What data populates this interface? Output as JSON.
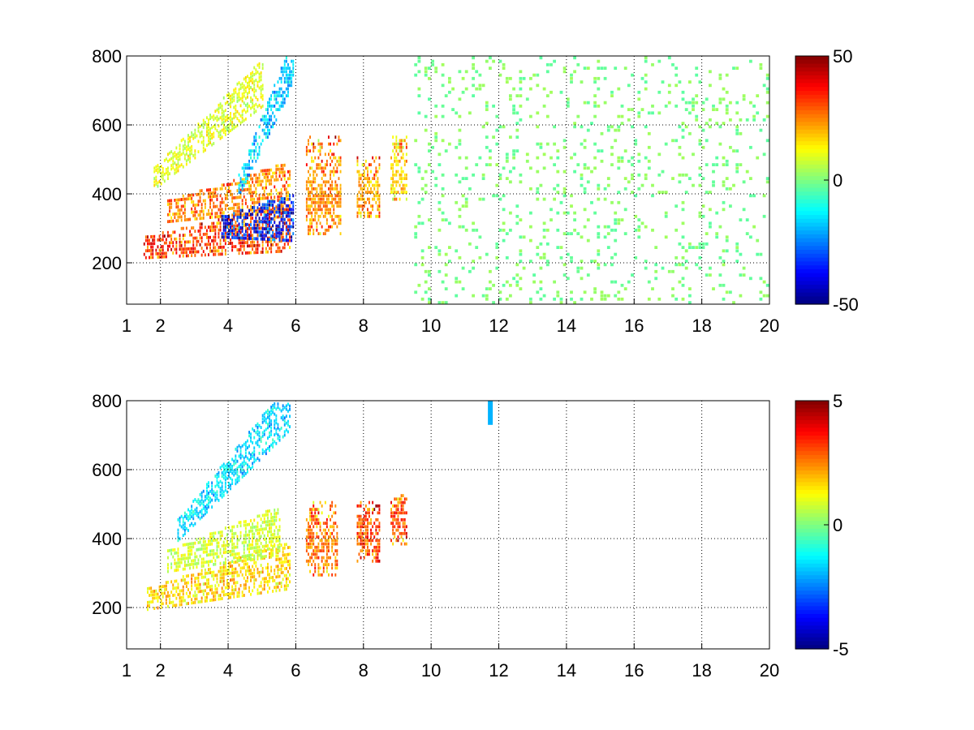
{
  "chart_data": [
    {
      "type": "heatmap",
      "title": "",
      "xlabel": "",
      "ylabel": "",
      "xlim": [
        1,
        20
      ],
      "ylim": [
        80,
        800
      ],
      "grid": true,
      "x_ticks": [
        1,
        2,
        4,
        6,
        8,
        10,
        12,
        14,
        16,
        18,
        20
      ],
      "y_ticks": [
        200,
        400,
        600,
        800
      ],
      "colorbar": {
        "min": -50,
        "max": 50,
        "ticks": [
          50,
          0,
          -50
        ],
        "colormap": "jet"
      },
      "features": [
        {
          "kind": "band",
          "x": [
            1.5,
            5.8
          ],
          "y_start": 240,
          "y_end": 300,
          "value": 40
        },
        {
          "kind": "band",
          "x": [
            2.2,
            5.8
          ],
          "y_start": 345,
          "y_end": 420,
          "value": 30
        },
        {
          "kind": "band",
          "x": [
            1.8,
            5.0
          ],
          "y_start": 440,
          "y_end": 720,
          "value": 12
        },
        {
          "kind": "band",
          "x": [
            3.8,
            5.9
          ],
          "y_start": 300,
          "y_end": 330,
          "value": -45
        },
        {
          "kind": "band",
          "x": [
            4.3,
            5.9
          ],
          "y_start": 420,
          "y_end": 780,
          "value": -22
        },
        {
          "kind": "blob",
          "x": [
            6.3,
            7.3
          ],
          "y": [
            280,
            560
          ],
          "center": 380,
          "value": 28
        },
        {
          "kind": "blob",
          "x": [
            7.8,
            8.5
          ],
          "y": [
            330,
            500
          ],
          "center": 400,
          "value": 25
        },
        {
          "kind": "blob",
          "x": [
            8.8,
            9.3
          ],
          "y": [
            380,
            560
          ],
          "center": 450,
          "value": 20
        },
        {
          "kind": "scatter",
          "x": [
            9.5,
            20
          ],
          "y": [
            80,
            800
          ],
          "value": 3
        }
      ]
    },
    {
      "type": "heatmap",
      "title": "",
      "xlabel": "",
      "ylabel": "",
      "xlim": [
        1,
        20
      ],
      "ylim": [
        80,
        800
      ],
      "grid": true,
      "x_ticks": [
        1,
        2,
        4,
        6,
        8,
        10,
        12,
        14,
        16,
        18,
        20
      ],
      "y_ticks": [
        200,
        400,
        600,
        800
      ],
      "colorbar": {
        "min": -5,
        "max": 5,
        "ticks": [
          5,
          0,
          -5
        ],
        "colormap": "jet"
      },
      "features": [
        {
          "kind": "band",
          "x": [
            1.6,
            5.8
          ],
          "y_start": 220,
          "y_end": 320,
          "value": 2
        },
        {
          "kind": "band",
          "x": [
            2.2,
            5.5
          ],
          "y_start": 330,
          "y_end": 420,
          "value": 1
        },
        {
          "kind": "band",
          "x": [
            2.5,
            5.8
          ],
          "y_start": 420,
          "y_end": 780,
          "value": -2
        },
        {
          "kind": "blob",
          "x": [
            6.3,
            7.2
          ],
          "y": [
            290,
            500
          ],
          "center": 370,
          "value": 3
        },
        {
          "kind": "blob",
          "x": [
            7.8,
            8.5
          ],
          "y": [
            330,
            500
          ],
          "center": 400,
          "value": 3.5
        },
        {
          "kind": "blob",
          "x": [
            8.8,
            9.3
          ],
          "y": [
            380,
            520
          ],
          "center": 450,
          "value": 3.5
        },
        {
          "kind": "mark",
          "x": 11.75,
          "y": [
            730,
            800
          ],
          "value": -2
        }
      ]
    }
  ]
}
